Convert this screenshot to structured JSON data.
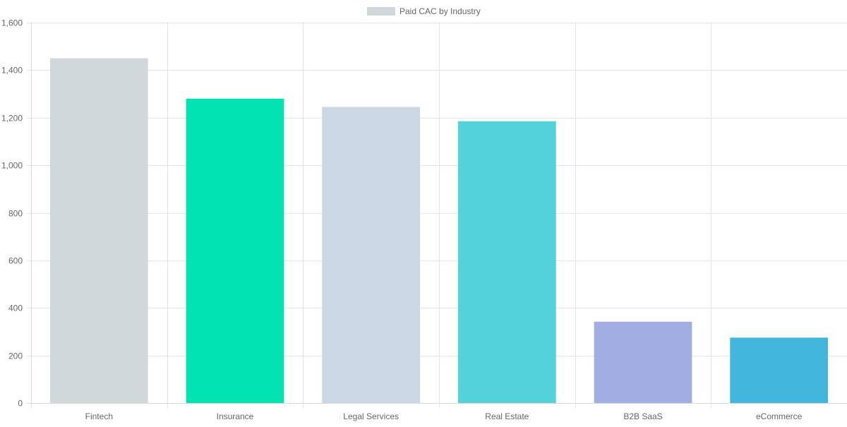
{
  "chart_data": {
    "type": "bar",
    "categories": [
      "Fintech",
      "Insurance",
      "Legal Services",
      "Real Estate",
      "B2B SaaS",
      "eCommerce"
    ],
    "series": [
      {
        "name": "Paid CAC by Industry",
        "values": [
          1450,
          1280,
          1245,
          1185,
          342,
          275
        ],
        "colors": [
          "#d1d8dc",
          "#00e3b1",
          "#cbd7e4",
          "#53d3d9",
          "#a2aee1",
          "#42b7dd"
        ]
      }
    ],
    "title": "",
    "xlabel": "",
    "ylabel": "",
    "ylim": [
      0,
      1600
    ],
    "yticks": [
      "0",
      "200",
      "400",
      "600",
      "800",
      "1,000",
      "1,200",
      "1,400",
      "1,600"
    ],
    "grid": true,
    "legend": {
      "position": "top-center",
      "label": "Paid CAC by Industry",
      "color": "#d1d8dc"
    }
  }
}
